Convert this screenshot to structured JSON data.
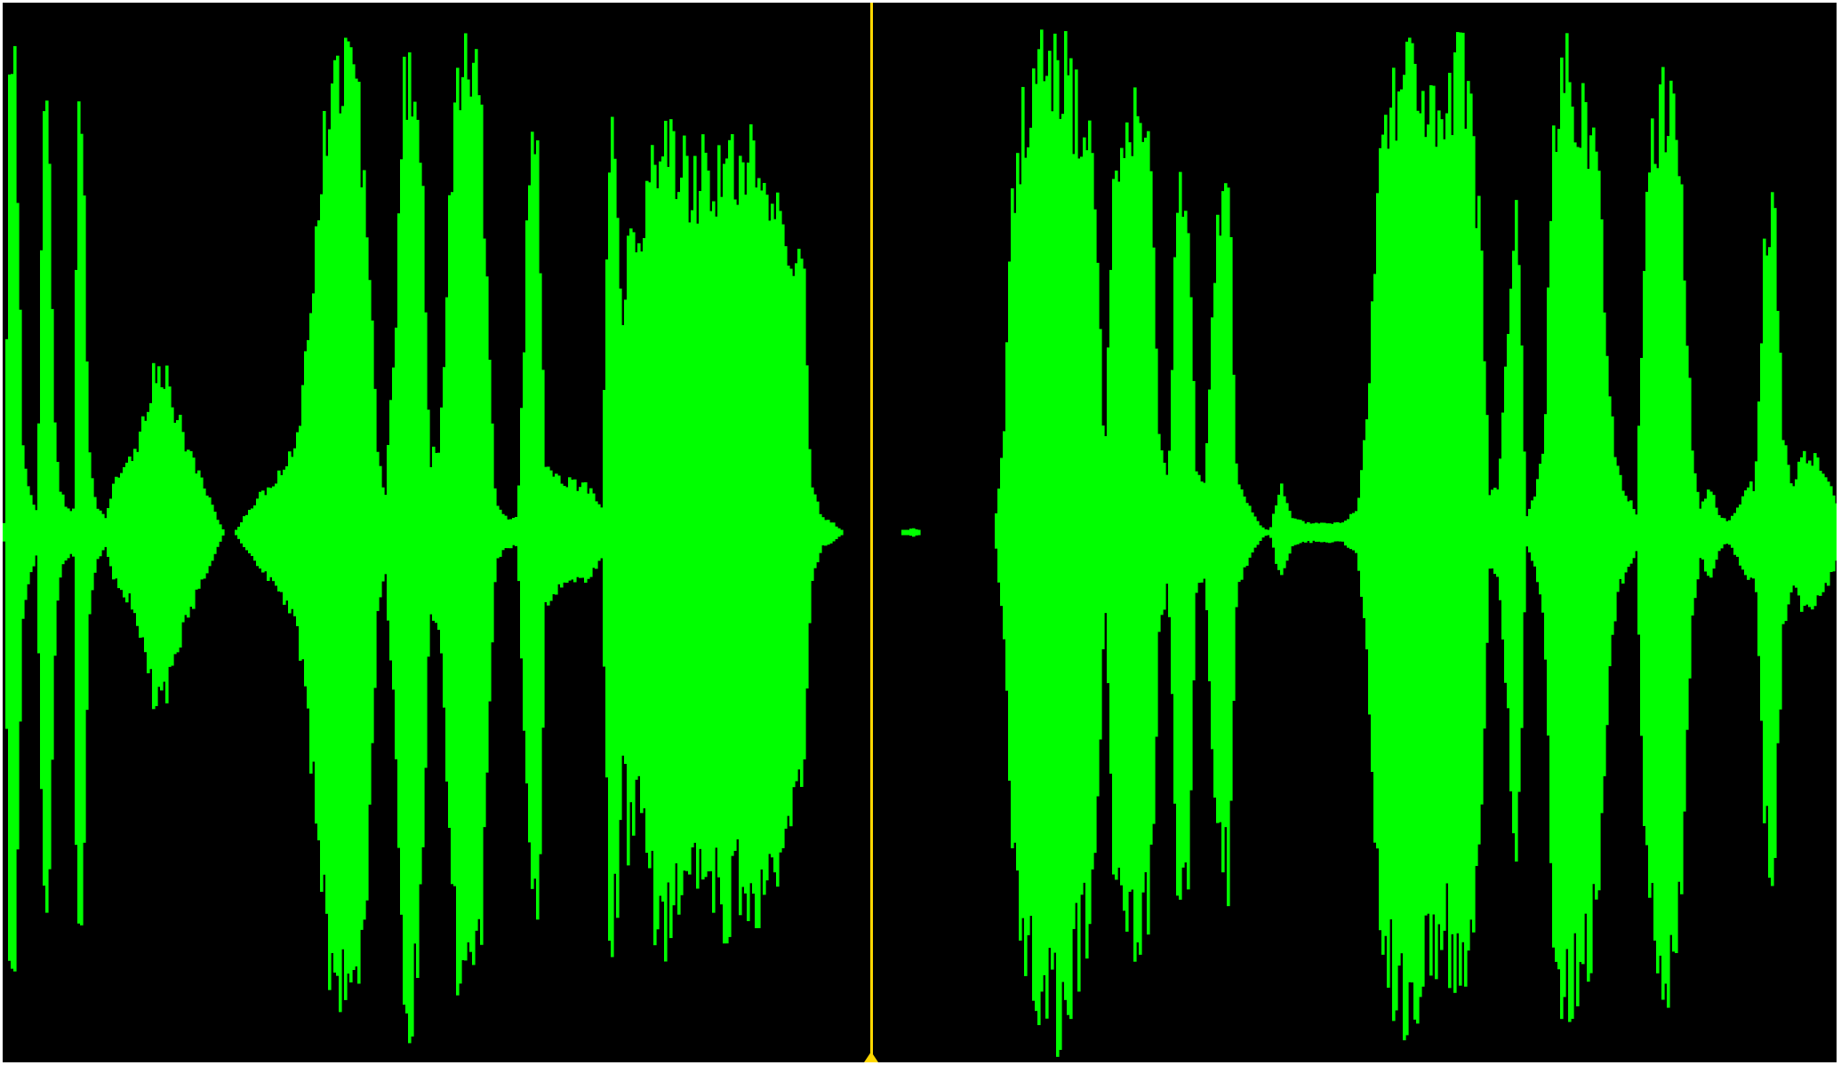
{
  "waveform": {
    "background_color": "#000000",
    "wave_color": "#00ff00",
    "playhead_color": "#ffd800",
    "playhead_position": 0.4738,
    "amplitude_envelope": [
      [
        0.0,
        0.02
      ],
      [
        0.003,
        0.9
      ],
      [
        0.006,
        0.94
      ],
      [
        0.01,
        0.2
      ],
      [
        0.014,
        0.08
      ],
      [
        0.018,
        0.05
      ],
      [
        0.022,
        0.88
      ],
      [
        0.024,
        0.85
      ],
      [
        0.027,
        0.3
      ],
      [
        0.03,
        0.1
      ],
      [
        0.034,
        0.05
      ],
      [
        0.038,
        0.05
      ],
      [
        0.04,
        0.93
      ],
      [
        0.043,
        0.9
      ],
      [
        0.046,
        0.18
      ],
      [
        0.05,
        0.06
      ],
      [
        0.055,
        0.03
      ],
      [
        0.06,
        0.1
      ],
      [
        0.068,
        0.14
      ],
      [
        0.075,
        0.22
      ],
      [
        0.082,
        0.35
      ],
      [
        0.088,
        0.34
      ],
      [
        0.094,
        0.25
      ],
      [
        0.1,
        0.18
      ],
      [
        0.108,
        0.1
      ],
      [
        0.114,
        0.05
      ],
      [
        0.12,
        0.0
      ],
      [
        0.126,
        0.0
      ],
      [
        0.132,
        0.04
      ],
      [
        0.14,
        0.08
      ],
      [
        0.15,
        0.12
      ],
      [
        0.16,
        0.2
      ],
      [
        0.167,
        0.45
      ],
      [
        0.172,
        0.72
      ],
      [
        0.177,
        0.88
      ],
      [
        0.182,
        0.96
      ],
      [
        0.187,
        0.99
      ],
      [
        0.192,
        0.9
      ],
      [
        0.198,
        0.7
      ],
      [
        0.204,
        0.15
      ],
      [
        0.208,
        0.08
      ],
      [
        0.213,
        0.4
      ],
      [
        0.218,
        0.96
      ],
      [
        0.223,
        0.98
      ],
      [
        0.228,
        0.7
      ],
      [
        0.232,
        0.15
      ],
      [
        0.238,
        0.2
      ],
      [
        0.243,
        0.7
      ],
      [
        0.248,
        0.93
      ],
      [
        0.252,
        0.99
      ],
      [
        0.256,
        0.95
      ],
      [
        0.26,
        0.86
      ],
      [
        0.264,
        0.4
      ],
      [
        0.268,
        0.06
      ],
      [
        0.274,
        0.03
      ],
      [
        0.28,
        0.03
      ],
      [
        0.286,
        0.7
      ],
      [
        0.291,
        0.85
      ],
      [
        0.295,
        0.15
      ],
      [
        0.3,
        0.12
      ],
      [
        0.306,
        0.11
      ],
      [
        0.312,
        0.1
      ],
      [
        0.317,
        0.1
      ],
      [
        0.322,
        0.08
      ],
      [
        0.326,
        0.05
      ],
      [
        0.33,
        0.8
      ],
      [
        0.334,
        0.82
      ],
      [
        0.337,
        0.4
      ],
      [
        0.34,
        0.65
      ],
      [
        0.346,
        0.55
      ],
      [
        0.352,
        0.75
      ],
      [
        0.358,
        0.82
      ],
      [
        0.364,
        0.8
      ],
      [
        0.37,
        0.76
      ],
      [
        0.376,
        0.72
      ],
      [
        0.382,
        0.78
      ],
      [
        0.388,
        0.74
      ],
      [
        0.394,
        0.8
      ],
      [
        0.4,
        0.72
      ],
      [
        0.406,
        0.78
      ],
      [
        0.412,
        0.76
      ],
      [
        0.418,
        0.7
      ],
      [
        0.424,
        0.66
      ],
      [
        0.43,
        0.6
      ],
      [
        0.436,
        0.55
      ],
      [
        0.44,
        0.1
      ],
      [
        0.446,
        0.03
      ],
      [
        0.452,
        0.02
      ],
      [
        0.458,
        0.0
      ],
      [
        0.47,
        0.0
      ],
      [
        0.49,
        0.0
      ],
      [
        0.496,
        0.01
      ],
      [
        0.5,
        0.0
      ],
      [
        0.52,
        0.0
      ],
      [
        0.54,
        0.0
      ],
      [
        0.545,
        0.2
      ],
      [
        0.55,
        0.7
      ],
      [
        0.555,
        0.85
      ],
      [
        0.56,
        0.9
      ],
      [
        0.565,
        0.99
      ],
      [
        0.57,
        0.99
      ],
      [
        0.575,
        0.99
      ],
      [
        0.58,
        0.96
      ],
      [
        0.585,
        0.88
      ],
      [
        0.59,
        0.82
      ],
      [
        0.595,
        0.75
      ],
      [
        0.6,
        0.12
      ],
      [
        0.605,
        0.7
      ],
      [
        0.61,
        0.82
      ],
      [
        0.615,
        0.86
      ],
      [
        0.62,
        0.84
      ],
      [
        0.625,
        0.75
      ],
      [
        0.63,
        0.2
      ],
      [
        0.635,
        0.1
      ],
      [
        0.64,
        0.75
      ],
      [
        0.645,
        0.76
      ],
      [
        0.65,
        0.12
      ],
      [
        0.655,
        0.1
      ],
      [
        0.662,
        0.68
      ],
      [
        0.668,
        0.72
      ],
      [
        0.672,
        0.12
      ],
      [
        0.678,
        0.06
      ],
      [
        0.684,
        0.02
      ],
      [
        0.69,
        0.0
      ],
      [
        0.696,
        0.1
      ],
      [
        0.702,
        0.03
      ],
      [
        0.71,
        0.02
      ],
      [
        0.72,
        0.02
      ],
      [
        0.73,
        0.02
      ],
      [
        0.738,
        0.05
      ],
      [
        0.744,
        0.3
      ],
      [
        0.75,
        0.82
      ],
      [
        0.755,
        0.9
      ],
      [
        0.76,
        0.95
      ],
      [
        0.765,
        0.99
      ],
      [
        0.77,
        0.95
      ],
      [
        0.775,
        0.9
      ],
      [
        0.78,
        0.85
      ],
      [
        0.785,
        0.82
      ],
      [
        0.79,
        0.9
      ],
      [
        0.795,
        0.99
      ],
      [
        0.8,
        0.88
      ],
      [
        0.805,
        0.6
      ],
      [
        0.81,
        0.08
      ],
      [
        0.815,
        0.1
      ],
      [
        0.82,
        0.4
      ],
      [
        0.825,
        0.7
      ],
      [
        0.83,
        0.03
      ],
      [
        0.835,
        0.08
      ],
      [
        0.84,
        0.2
      ],
      [
        0.845,
        0.9
      ],
      [
        0.85,
        0.96
      ],
      [
        0.855,
        0.95
      ],
      [
        0.86,
        0.9
      ],
      [
        0.865,
        0.84
      ],
      [
        0.87,
        0.74
      ],
      [
        0.875,
        0.3
      ],
      [
        0.88,
        0.12
      ],
      [
        0.885,
        0.08
      ],
      [
        0.89,
        0.04
      ],
      [
        0.895,
        0.7
      ],
      [
        0.9,
        0.85
      ],
      [
        0.905,
        0.92
      ],
      [
        0.91,
        0.88
      ],
      [
        0.915,
        0.7
      ],
      [
        0.92,
        0.2
      ],
      [
        0.925,
        0.05
      ],
      [
        0.93,
        0.1
      ],
      [
        0.935,
        0.04
      ],
      [
        0.94,
        0.02
      ],
      [
        0.945,
        0.05
      ],
      [
        0.95,
        0.1
      ],
      [
        0.955,
        0.1
      ],
      [
        0.96,
        0.6
      ],
      [
        0.965,
        0.7
      ],
      [
        0.97,
        0.2
      ],
      [
        0.975,
        0.1
      ],
      [
        0.98,
        0.16
      ],
      [
        0.985,
        0.16
      ],
      [
        0.99,
        0.14
      ],
      [
        0.995,
        0.1
      ],
      [
        1.0,
        0.05
      ]
    ]
  }
}
